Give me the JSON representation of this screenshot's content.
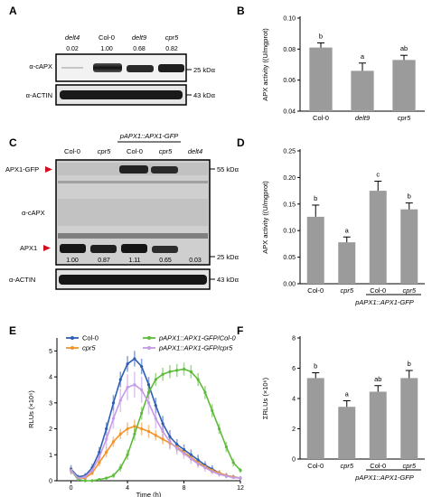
{
  "panels": {
    "A": {
      "letter": "A",
      "lanes": [
        "delt4",
        "Col-0",
        "delt9",
        "cpr5"
      ],
      "quant": [
        "0.02",
        "1.00",
        "0.68",
        "0.82"
      ],
      "blot1_label": "α-cAPX",
      "blot2_label": "α-ACTIN",
      "marker1": "25 kDα",
      "marker2": "43 kDα"
    },
    "C": {
      "letter": "C",
      "lanes": [
        "Col-0",
        "cpr5",
        "Col-0",
        "cpr5",
        "delt4"
      ],
      "transgene_label": "pAPX1::APX1-GFP",
      "quant": [
        "1.00",
        "0.87",
        "1.11",
        "0.65",
        "0.03"
      ],
      "label_gfp": "APX1-GFP",
      "label_capx": "α-cAPX",
      "label_apx1": "APX1",
      "label_actin": "α-ACTIN",
      "marker_55": "55 kDα",
      "marker_25": "25 kDα",
      "marker_43": "43 kDα"
    },
    "D_group_label": "pAPX1::APX1-GFP",
    "F_group_label": "pAPX1::APX1-GFP",
    "arrow_color": "#d01020"
  },
  "chart_data": [
    {
      "id": "B",
      "letter": "B",
      "type": "bar",
      "categories": [
        "Col-0",
        "delt9",
        "cpr5"
      ],
      "italic": [
        false,
        true,
        true
      ],
      "values": [
        0.081,
        0.066,
        0.073
      ],
      "errors": [
        0.003,
        0.005,
        0.003
      ],
      "sig": [
        "b",
        "a",
        "ab"
      ],
      "ylabel": "APX activity ((U/mgprot)",
      "ylim": [
        0.04,
        0.1
      ],
      "yticks": [
        "0.04",
        "0.06",
        "0.08",
        "0.10"
      ],
      "color": "#9b9b9b"
    },
    {
      "id": "D",
      "letter": "D",
      "type": "bar",
      "categories": [
        "Col-0",
        "cpr5",
        "Col-0",
        "cpr5"
      ],
      "italic": [
        false,
        true,
        false,
        true
      ],
      "values": [
        0.126,
        0.078,
        0.175,
        0.14
      ],
      "errors": [
        0.022,
        0.01,
        0.018,
        0.012
      ],
      "sig": [
        "b",
        "a",
        "c",
        "b"
      ],
      "ylabel": "APX activity ((U/mgprot)",
      "ylim": [
        0,
        0.25
      ],
      "yticks": [
        "0.00",
        "0.05",
        "0.10",
        "0.15",
        "0.20",
        "0.25"
      ],
      "color": "#9b9b9b"
    },
    {
      "id": "E",
      "letter": "E",
      "type": "line",
      "xlabel": "Time (h)",
      "ylabel": "RLUs (×10⁶)",
      "xlim": [
        -1,
        12
      ],
      "ylim": [
        0,
        5.5
      ],
      "xticks": [
        "0",
        "4",
        "8",
        "12"
      ],
      "yticks": [
        "0",
        "1",
        "2",
        "3",
        "4",
        "5"
      ],
      "x": [
        0,
        0.5,
        1,
        1.5,
        2,
        2.5,
        3,
        3.5,
        4,
        4.5,
        5,
        5.5,
        6,
        6.5,
        7,
        7.5,
        8,
        8.5,
        9,
        9.5,
        10,
        10.5,
        11,
        11.5,
        12
      ],
      "series": [
        {
          "name": "Col-0",
          "color": "#2f5fb4",
          "values": [
            0.45,
            0.15,
            0.2,
            0.5,
            1.1,
            2.0,
            3.0,
            3.9,
            4.5,
            4.7,
            4.4,
            3.7,
            2.9,
            2.2,
            1.7,
            1.4,
            1.2,
            1.0,
            0.8,
            0.6,
            0.45,
            0.3,
            0.2,
            0.15,
            0.1
          ],
          "errors": [
            0.15,
            0.08,
            0.1,
            0.15,
            0.2,
            0.25,
            0.3,
            0.3,
            0.3,
            0.3,
            0.3,
            0.3,
            0.3,
            0.3,
            0.25,
            0.2,
            0.2,
            0.2,
            0.2,
            0.15,
            0.15,
            0.1,
            0.1,
            0.08,
            0.08
          ]
        },
        {
          "name": "cpr5",
          "color": "#f0952a",
          "values": [
            0.4,
            0.1,
            0.1,
            0.3,
            0.7,
            1.1,
            1.5,
            1.8,
            2.0,
            2.1,
            2.0,
            1.9,
            1.75,
            1.6,
            1.45,
            1.3,
            1.1,
            0.9,
            0.7,
            0.55,
            0.4,
            0.3,
            0.2,
            0.15,
            0.1
          ],
          "errors": [
            0.15,
            0.05,
            0.05,
            0.1,
            0.15,
            0.2,
            0.2,
            0.2,
            0.25,
            0.25,
            0.25,
            0.25,
            0.2,
            0.2,
            0.2,
            0.2,
            0.15,
            0.15,
            0.15,
            0.1,
            0.1,
            0.1,
            0.08,
            0.05,
            0.05
          ]
        },
        {
          "name": "pAPX1::APX1-GFP/Col-0",
          "color": "#5dbb3a",
          "values": [
            0.4,
            0.05,
            0.0,
            0.0,
            0.05,
            0.1,
            0.2,
            0.5,
            1.0,
            1.8,
            2.6,
            3.4,
            3.9,
            4.1,
            4.2,
            4.25,
            4.3,
            4.2,
            3.9,
            3.4,
            2.7,
            2.0,
            1.3,
            0.7,
            0.4
          ],
          "errors": [
            0.15,
            0.05,
            0.02,
            0.02,
            0.03,
            0.05,
            0.1,
            0.15,
            0.2,
            0.25,
            0.25,
            0.25,
            0.25,
            0.25,
            0.25,
            0.25,
            0.25,
            0.25,
            0.25,
            0.25,
            0.25,
            0.2,
            0.2,
            0.15,
            0.1
          ]
        },
        {
          "name": "pAPX1::APX1-GFP/cpr5",
          "color": "#c49ae6",
          "values": [
            0.4,
            0.1,
            0.15,
            0.4,
            0.9,
            1.6,
            2.4,
            3.1,
            3.6,
            3.7,
            3.5,
            3.0,
            2.4,
            1.9,
            1.5,
            1.25,
            1.05,
            0.85,
            0.65,
            0.5,
            0.35,
            0.25,
            0.18,
            0.12,
            0.1
          ],
          "errors": [
            0.15,
            0.05,
            0.1,
            0.15,
            0.25,
            0.35,
            0.4,
            0.45,
            0.5,
            0.5,
            0.5,
            0.45,
            0.4,
            0.35,
            0.3,
            0.25,
            0.2,
            0.2,
            0.15,
            0.15,
            0.1,
            0.1,
            0.08,
            0.05,
            0.05
          ]
        }
      ]
    },
    {
      "id": "F",
      "letter": "F",
      "type": "bar",
      "categories": [
        "Col-0",
        "cpr5",
        "Col-0",
        "cpr5"
      ],
      "italic": [
        false,
        true,
        false,
        true
      ],
      "values": [
        5.35,
        3.45,
        4.45,
        5.35
      ],
      "errors": [
        0.35,
        0.4,
        0.4,
        0.5
      ],
      "sig": [
        "b",
        "a",
        "ab",
        "b"
      ],
      "ylabel": "ΣRLUs (×10⁶)",
      "ylim": [
        0,
        8
      ],
      "yticks": [
        "0",
        "2",
        "4",
        "6",
        "8"
      ],
      "color": "#9b9b9b"
    }
  ]
}
